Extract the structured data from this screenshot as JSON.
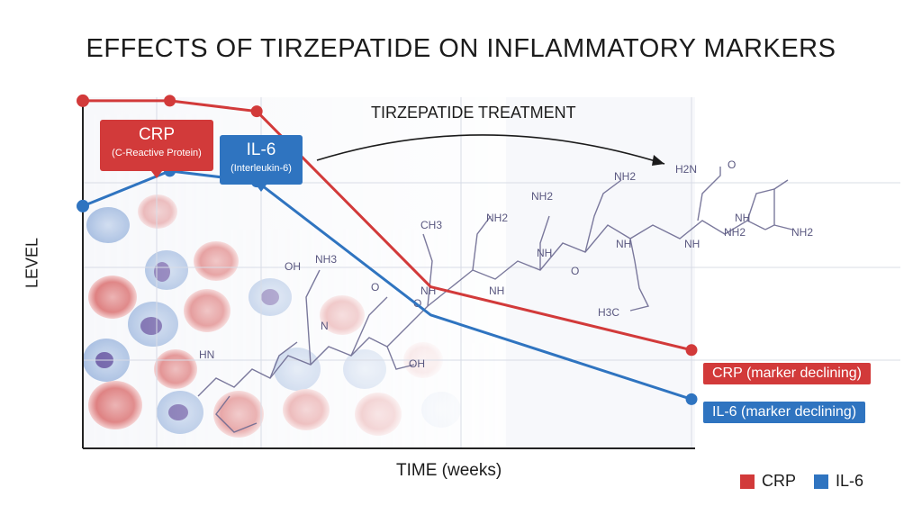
{
  "chart_data": {
    "type": "line",
    "title": "EFFECTS OF TIRZEPATIDE ON INFLAMMATORY MARKERS",
    "xlabel": "TIME (weeks)",
    "ylabel": "LEVEL",
    "x": [
      0,
      1,
      2,
      4,
      7
    ],
    "xlim": [
      0,
      7
    ],
    "ylim": [
      0,
      10
    ],
    "grid": true,
    "legend_position": "bottom-right",
    "series": [
      {
        "name": "CRP",
        "color": "#d23a3a",
        "x": [
          0,
          1,
          2,
          4,
          7
        ],
        "y": [
          9.9,
          9.9,
          9.6,
          4.6,
          2.8
        ]
      },
      {
        "name": "IL-6",
        "color": "#2f74c0",
        "x": [
          0,
          1,
          2,
          4,
          7
        ],
        "y": [
          6.9,
          7.9,
          7.6,
          3.8,
          1.4
        ]
      }
    ],
    "annotations": {
      "crp_callout": {
        "main": "CRP",
        "sub": "(C-Reactive Protein)"
      },
      "il6_callout": {
        "main": "IL-6",
        "sub": "(Interleukin-6)"
      },
      "treatment": "TIRZEPATIDE TREATMENT",
      "crp_end": "CRP (marker declining)",
      "il6_end": "IL-6 (marker declining)"
    },
    "molecule_labels": [
      "CH3",
      "NH2",
      "NH2",
      "NH2",
      "NH2",
      "H2N",
      "NH2",
      "OH",
      "NH3",
      "OH",
      "H3C",
      "NH",
      "NH",
      "NH",
      "NH",
      "NH",
      "NH",
      "N",
      "HN",
      "O",
      "O",
      "O",
      "O"
    ]
  },
  "legend": [
    {
      "label": "CRP",
      "color": "#d23a3a"
    },
    {
      "label": "IL-6",
      "color": "#2f74c0"
    }
  ]
}
